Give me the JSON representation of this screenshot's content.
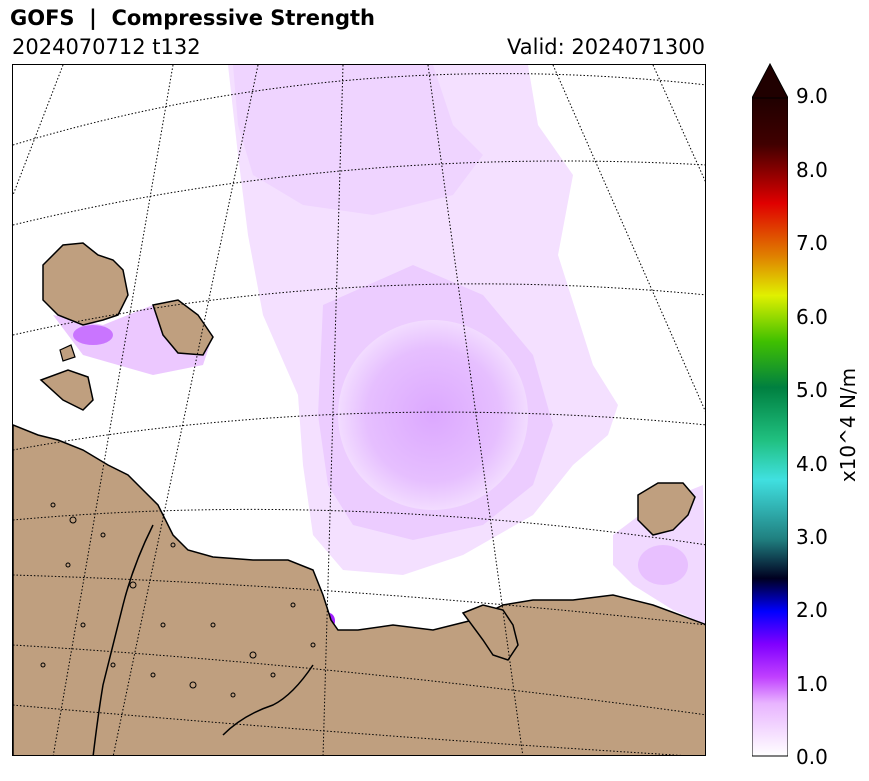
{
  "header": {
    "title": "GOFS  |  Compressive Strength",
    "run": "2024070712 t132",
    "valid": "Valid: 2024071300"
  },
  "colorbar": {
    "label": "x10^4 N/m",
    "ticks": [
      "0.0",
      "1.0",
      "2.0",
      "3.0",
      "4.0",
      "5.0",
      "6.0",
      "7.0",
      "8.0",
      "9.0"
    ],
    "range": [
      0,
      9
    ],
    "extend": "max",
    "colors": [
      "#ffffff",
      "#e8b4ff",
      "#c040ff",
      "#8000ff",
      "#0000ff",
      "#000020",
      "#208080",
      "#40e0e0",
      "#20c080",
      "#008040",
      "#40c000",
      "#e0f000",
      "#e08000",
      "#e00000",
      "#400000",
      "#200000"
    ]
  },
  "map": {
    "land_color": "#bf9f7f",
    "ice_color": "#e6b3ff",
    "gridlines": "dotted"
  }
}
